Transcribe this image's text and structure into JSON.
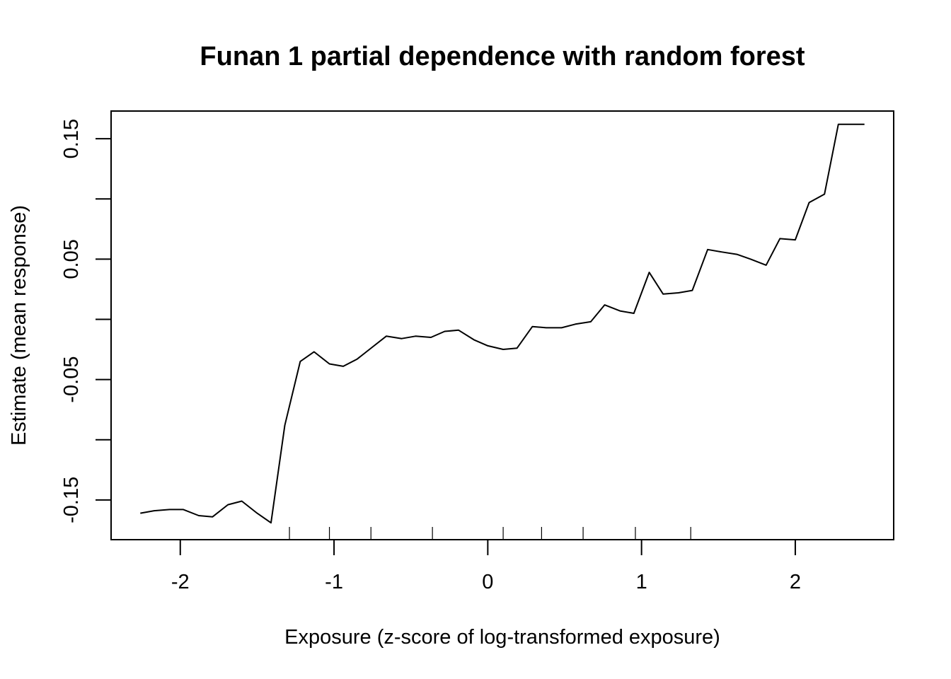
{
  "chart_data": {
    "type": "line",
    "title": "Funan 1 partial dependence with random forest",
    "xlabel": "Exposure (z-score of log-transformed exposure)",
    "ylabel": "Estimate (mean response)",
    "xlim": [
      -2.45,
      2.64
    ],
    "ylim": [
      -0.183,
      0.173
    ],
    "x_ticks": [
      -2,
      -1,
      0,
      1,
      2
    ],
    "x_tick_labels": [
      "-2",
      "-1",
      "0",
      "1",
      "2"
    ],
    "y_ticks": [
      -0.15,
      -0.1,
      -0.05,
      0.0,
      0.05,
      0.1,
      0.15
    ],
    "y_tick_labels": [
      "-0.15",
      "",
      "-0.05",
      "",
      "0.05",
      "",
      "0.15"
    ],
    "grid": false,
    "rug": [
      -1.29,
      -1.03,
      -0.76,
      -0.36,
      0.1,
      0.35,
      0.62,
      0.96,
      1.32
    ],
    "series": [
      {
        "x": [
          -2.26,
          -2.17,
          -2.07,
          -1.98,
          -1.88,
          -1.79,
          -1.69,
          -1.6,
          -1.5,
          -1.41,
          -1.32,
          -1.22,
          -1.13,
          -1.03,
          -0.94,
          -0.85,
          -0.75,
          -0.66,
          -0.56,
          -0.47,
          -0.37,
          -0.28,
          -0.19,
          -0.09,
          0.0,
          0.1,
          0.19,
          0.29,
          0.38,
          0.48,
          0.57,
          0.67,
          0.76,
          0.86,
          0.95,
          1.05,
          1.14,
          1.24,
          1.33,
          1.43,
          1.52,
          1.62,
          1.71,
          1.81,
          1.9,
          2.0,
          2.09,
          2.19,
          2.28,
          2.45
        ],
        "y": [
          -0.161,
          -0.159,
          -0.158,
          -0.158,
          -0.163,
          -0.164,
          -0.154,
          -0.151,
          -0.161,
          -0.169,
          -0.088,
          -0.035,
          -0.027,
          -0.037,
          -0.039,
          -0.033,
          -0.023,
          -0.014,
          -0.016,
          -0.014,
          -0.015,
          -0.01,
          -0.009,
          -0.017,
          -0.022,
          -0.025,
          -0.024,
          -0.006,
          -0.007,
          -0.007,
          -0.004,
          -0.002,
          0.012,
          0.007,
          0.005,
          0.039,
          0.021,
          0.022,
          0.024,
          0.058,
          0.056,
          0.054,
          0.05,
          0.045,
          0.067,
          0.066,
          0.097,
          0.104,
          0.162,
          0.162
        ]
      }
    ]
  }
}
